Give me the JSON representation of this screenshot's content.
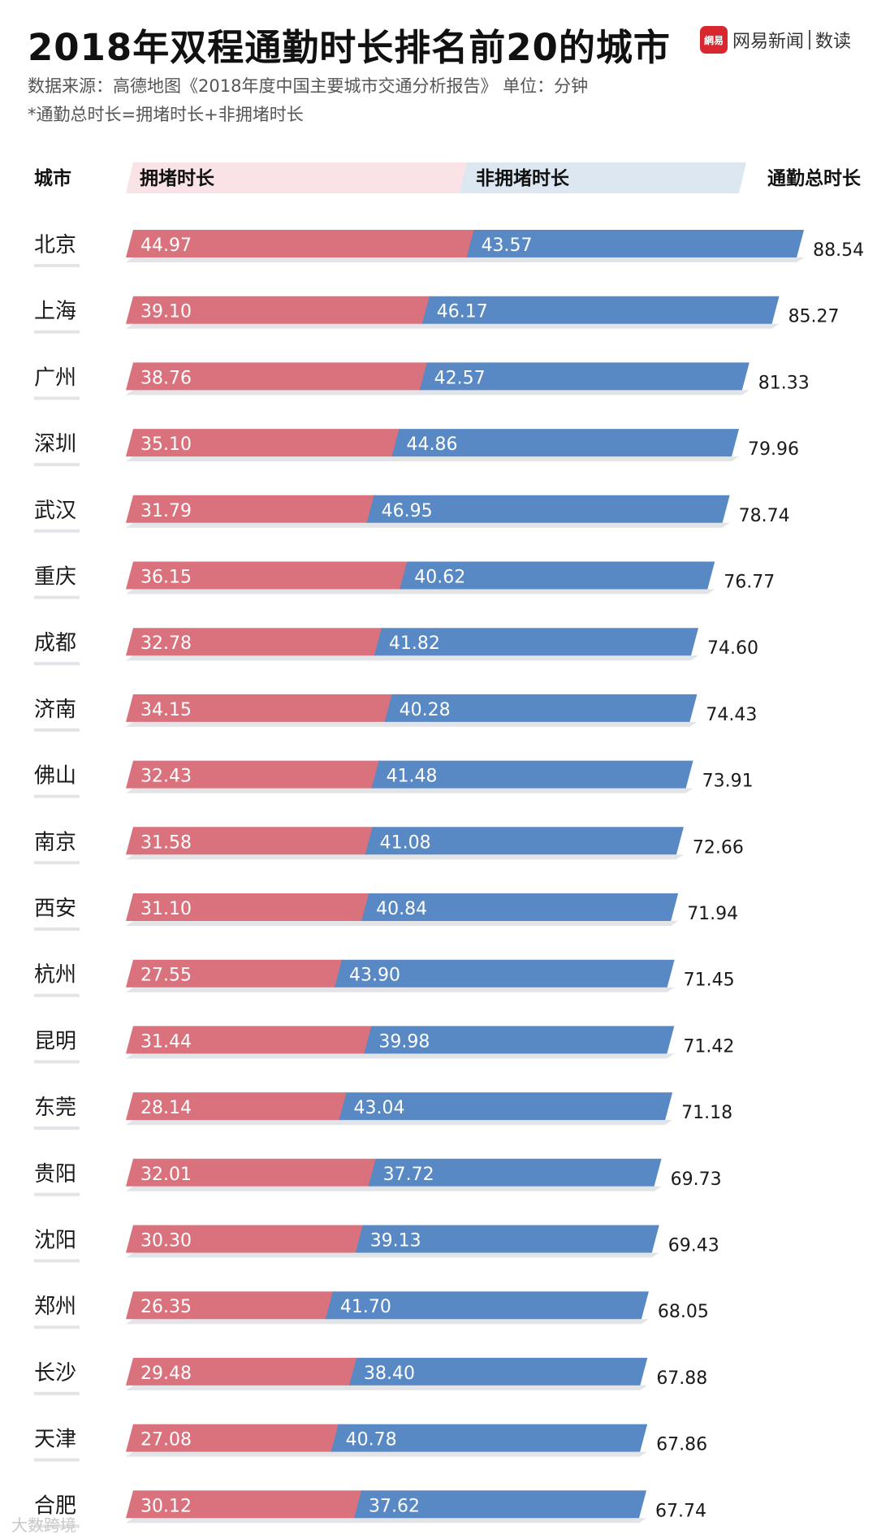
{
  "title": "2018年双程通勤时长排名前20的城市",
  "brand": {
    "logo_text": "網易",
    "name": "网易新闻",
    "sub": "数读"
  },
  "source": "数据来源：高德地图《2018年度中国主要城市交通分析报告》      单位：分钟",
  "note": "*通勤总时长=拥堵时长+非拥堵时长",
  "watermark": "大数跨境",
  "colors": {
    "congested": "#d9727d",
    "noncongested": "#5889c4",
    "congested_header": "#f9e3e6",
    "noncongested_header": "#dde7f1",
    "shadow": "#e2e4e8"
  },
  "chart_data": {
    "type": "bar",
    "stacked": true,
    "orientation": "horizontal",
    "unit": "分钟",
    "headers": {
      "category": "城市",
      "congested": "拥堵时长",
      "noncongested": "非拥堵时长",
      "total": "通勤总时长"
    },
    "categories": [
      "北京",
      "上海",
      "广州",
      "深圳",
      "武汉",
      "重庆",
      "成都",
      "济南",
      "佛山",
      "南京",
      "西安",
      "杭州",
      "昆明",
      "东莞",
      "贵阳",
      "沈阳",
      "郑州",
      "长沙",
      "天津",
      "合肥"
    ],
    "series": [
      {
        "name": "拥堵时长",
        "values": [
          "44.97",
          "39.10",
          "38.76",
          "35.10",
          "31.79",
          "36.15",
          "32.78",
          "34.15",
          "32.43",
          "31.58",
          "31.10",
          "27.55",
          "31.44",
          "28.14",
          "32.01",
          "30.30",
          "26.35",
          "29.48",
          "27.08",
          "30.12"
        ]
      },
      {
        "name": "非拥堵时长",
        "values": [
          "43.57",
          "46.17",
          "42.57",
          "44.86",
          "46.95",
          "40.62",
          "41.82",
          "40.28",
          "41.48",
          "41.08",
          "40.84",
          "43.90",
          "39.98",
          "43.04",
          "37.72",
          "39.13",
          "41.70",
          "38.40",
          "40.78",
          "37.62"
        ]
      }
    ],
    "totals": [
      "88.54",
      "85.27",
      "81.33",
      "79.96",
      "78.74",
      "76.77",
      "74.60",
      "74.43",
      "73.91",
      "72.66",
      "71.94",
      "71.45",
      "71.42",
      "71.18",
      "69.73",
      "69.43",
      "68.05",
      "67.88",
      "67.86",
      "67.74"
    ]
  }
}
